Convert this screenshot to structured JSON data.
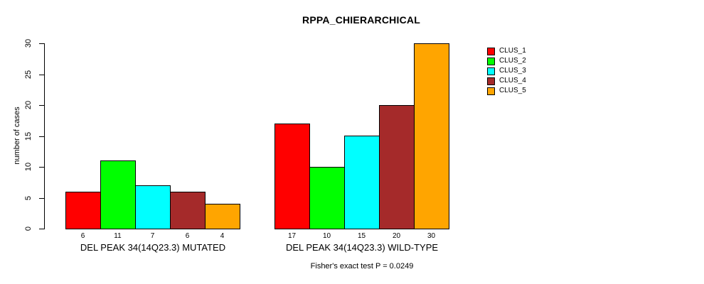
{
  "chart_data": {
    "type": "bar",
    "title": "RPPA_CHIERARCHICAL",
    "ylabel": "number of cases",
    "xlabel": "",
    "ylim": [
      0,
      30
    ],
    "yticks": [
      0,
      5,
      10,
      15,
      20,
      25,
      30
    ],
    "grid": false,
    "legend_position": "right-outside",
    "categories": [
      "DEL PEAK 34(14Q23.3) MUTATED",
      "DEL PEAK 34(14Q23.3) WILD-TYPE"
    ],
    "series": [
      {
        "name": "CLUS_1",
        "color": "#ff0000",
        "values": [
          6,
          17
        ]
      },
      {
        "name": "CLUS_2",
        "color": "#00ff00",
        "values": [
          11,
          10
        ]
      },
      {
        "name": "CLUS_3",
        "color": "#00ffff",
        "values": [
          7,
          15
        ]
      },
      {
        "name": "CLUS_4",
        "color": "#a52a2a",
        "values": [
          6,
          20
        ]
      },
      {
        "name": "CLUS_5",
        "color": "#ffa500",
        "values": [
          4,
          30
        ]
      }
    ],
    "bar_value_labels_shown": true,
    "bar_border_color": "#000000",
    "footer": "Fisher's exact test P = 0.0249"
  }
}
